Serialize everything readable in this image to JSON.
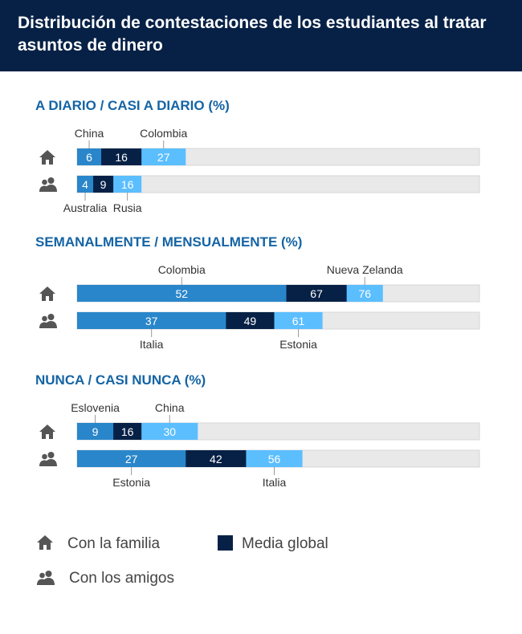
{
  "title": "Distribución de contestaciones de los estudiantes al tratar asuntos de dinero",
  "colors": {
    "header_bg": "#072146",
    "section_title": "#1464a5",
    "bar_low": "#2a86ca",
    "bar_global": "#072146",
    "bar_high": "#5bbeff",
    "bar_track": "#e9e9e9",
    "icon": "#555555"
  },
  "legend": {
    "family_label": "Con la familia",
    "family_icon": "house-icon",
    "friends_label": "Con los amigos",
    "friends_icon": "people-icon",
    "global_label": "Media global"
  },
  "chart_data": [
    {
      "type": "bar",
      "title": "A DIARIO / CASI A DIARIO (%)",
      "xlim": [
        0,
        100
      ],
      "rows": [
        {
          "group": "Con la familia",
          "icon": "house-icon",
          "min": 6,
          "avg": 16,
          "max": 27,
          "min_country": "China",
          "max_country": "Colombia"
        },
        {
          "group": "Con los amigos",
          "icon": "people-icon",
          "min": 4,
          "avg": 9,
          "max": 16,
          "min_country": "Australia",
          "max_country": "Rusia"
        }
      ]
    },
    {
      "type": "bar",
      "title": "SEMANALMENTE / MENSUALMENTE (%)",
      "xlim": [
        0,
        100
      ],
      "rows": [
        {
          "group": "Con la familia",
          "icon": "house-icon",
          "min": 52,
          "avg": 67,
          "max": 76,
          "min_country": "Colombia",
          "max_country": "Nueva Zelanda"
        },
        {
          "group": "Con los amigos",
          "icon": "people-icon",
          "min": 37,
          "avg": 49,
          "max": 61,
          "min_country": "Italia",
          "max_country": "Estonia"
        }
      ]
    },
    {
      "type": "bar",
      "title": "NUNCA / CASI NUNCA (%)",
      "xlim": [
        0,
        100
      ],
      "rows": [
        {
          "group": "Con la familia",
          "icon": "house-icon",
          "min": 9,
          "avg": 16,
          "max": 30,
          "min_country": "Eslovenia",
          "max_country": "China"
        },
        {
          "group": "Con los amigos",
          "icon": "people-icon",
          "min": 27,
          "avg": 42,
          "max": 56,
          "min_country": "Estonia",
          "max_country": "Italia"
        }
      ]
    }
  ]
}
